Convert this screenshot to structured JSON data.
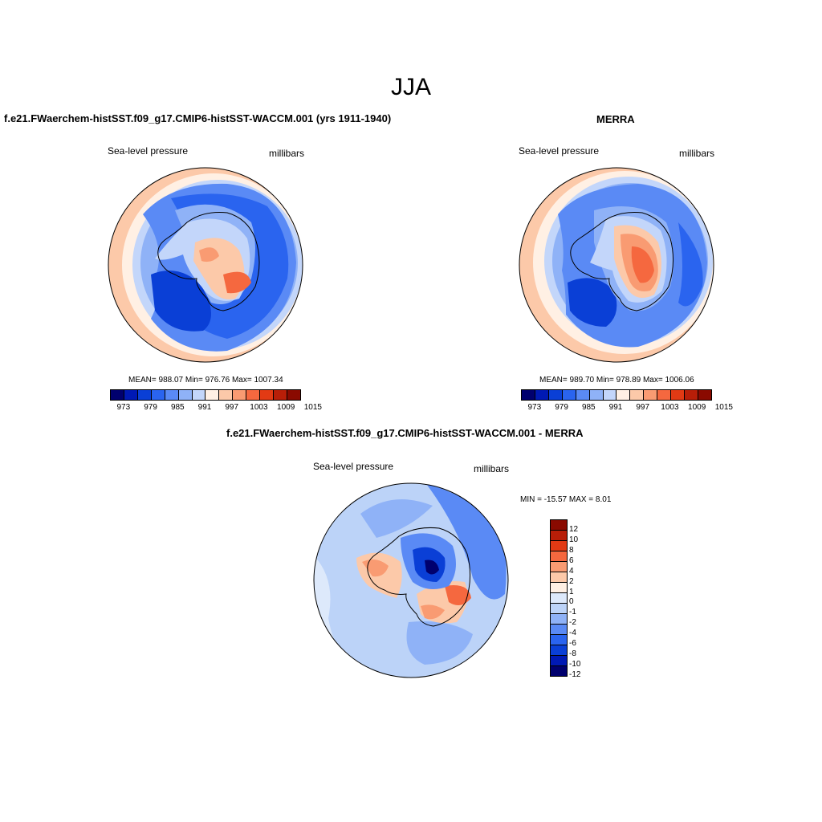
{
  "main_title": "JJA",
  "panels": [
    {
      "title": "f.e21.FWaerchem-histSST.f09_g17.CMIP6-histSST-WACCM.001 (yrs 1911-1940)",
      "left_label": "Sea-level pressure",
      "right_label": "millibars",
      "stats": "MEAN= 988.07  Min= 976.76  Max= 1007.34",
      "colorbar_ticks": [
        "973",
        "979",
        "985",
        "991",
        "997",
        "1003",
        "1009",
        "1015"
      ]
    },
    {
      "title": "MERRA",
      "left_label": "Sea-level pressure",
      "right_label": "millibars",
      "stats": "MEAN= 989.70  Min= 978.89  Max= 1006.06",
      "colorbar_ticks": [
        "973",
        "979",
        "985",
        "991",
        "997",
        "1003",
        "1009",
        "1015"
      ]
    },
    {
      "title": "f.e21.FWaerchem-histSST.f09_g17.CMIP6-histSST-WACCM.001 - MERRA",
      "left_label": "Sea-level pressure",
      "right_label": "millibars",
      "stats": "MIN = -15.57 MAX =   8.01",
      "colorbar_ticks": [
        "12",
        "10",
        "8",
        "6",
        "4",
        "2",
        "1",
        "0",
        "-1",
        "-2",
        "-4",
        "-6",
        "-8",
        "-10",
        "-12"
      ]
    }
  ],
  "colors": {
    "abs_scale": [
      "#00006e",
      "#0019b4",
      "#0a3fd6",
      "#2a64ef",
      "#5a8af5",
      "#8fb2f7",
      "#c3d6fa",
      "#fff0e4",
      "#fcc9a9",
      "#f99b72",
      "#f5683f",
      "#e23a14",
      "#b81e08",
      "#8a0a00"
    ],
    "diff_scale": [
      "#8a0a00",
      "#b81e08",
      "#e23a14",
      "#f5683f",
      "#f99b72",
      "#fcc9a9",
      "#fff0e4",
      "#dde9fb",
      "#bcd3f8",
      "#8fb2f7",
      "#5a8af5",
      "#2a64ef",
      "#0a3fd6",
      "#0019b4",
      "#00006e"
    ]
  }
}
